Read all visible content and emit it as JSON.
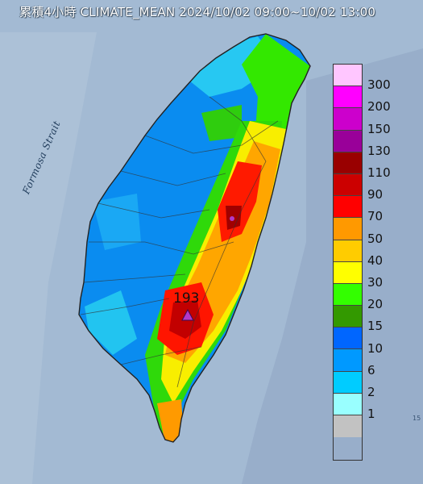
{
  "title": "累積4小時 CLIMATE_MEAN 2024/10/02 09:00~10/02 13:00",
  "sea_label": "Formosa Strait",
  "peak_value": "193",
  "peak_marker_color": "#b23ac8",
  "legend": {
    "labels": [
      "300",
      "200",
      "150",
      "130",
      "110",
      "90",
      "70",
      "50",
      "40",
      "30",
      "20",
      "15",
      "10",
      "6",
      "2",
      "1"
    ],
    "colors": [
      "#ffc6ff",
      "#ff00ff",
      "#cc00cc",
      "#990099",
      "#990000",
      "#cc0000",
      "#ff0000",
      "#ff9900",
      "#ffcc00",
      "#ffff00",
      "#33ff00",
      "#339900",
      "#0066ff",
      "#0099ff",
      "#00ccff",
      "#99ffff",
      "#c2c2c2"
    ]
  },
  "corner_mark": "15"
}
